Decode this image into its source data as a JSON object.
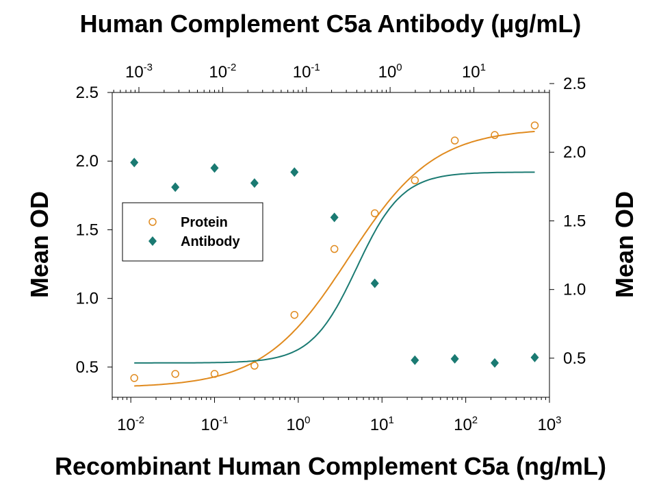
{
  "chart_data": {
    "type": "scatter",
    "title_top": "Human Complement C5a Antibody (μg/mL)",
    "xlabel": "Recombinant Human Complement C5a (ng/mL)",
    "ylabel_left": "Mean OD",
    "ylabel_right": "Mean OD",
    "x_scale": "log",
    "xlim": [
      0.006,
      1000
    ],
    "ylim_left": [
      0.28,
      2.5
    ],
    "ylim_right": [
      0.28,
      2.5
    ],
    "x_ticks": [
      {
        "value": 0.01,
        "base": "10",
        "exp": "-2"
      },
      {
        "value": 0.1,
        "base": "10",
        "exp": "-1"
      },
      {
        "value": 1,
        "base": "10",
        "exp": "0"
      },
      {
        "value": 10,
        "base": "10",
        "exp": "1"
      },
      {
        "value": 100,
        "base": "10",
        "exp": "2"
      },
      {
        "value": 1000,
        "base": "10",
        "exp": "3"
      }
    ],
    "top_x_ticks": [
      {
        "value": 0.001,
        "base": "10",
        "exp": "-3"
      },
      {
        "value": 0.01,
        "base": "10",
        "exp": "-2"
      },
      {
        "value": 0.1,
        "base": "10",
        "exp": "-1"
      },
      {
        "value": 1,
        "base": "10",
        "exp": "0"
      },
      {
        "value": 10,
        "base": "10",
        "exp": "1"
      }
    ],
    "top_xlim": [
      0.00048,
      80
    ],
    "y_ticks_left": [
      "0.5",
      "1.0",
      "1.5",
      "2.0",
      "2.5"
    ],
    "y_ticks_right": [
      "0.5",
      "1.0",
      "1.5",
      "2.0",
      "2.5"
    ],
    "legend_position": "center-left",
    "series": [
      {
        "name": "Protein",
        "marker": "open-circle",
        "color": "#E08A1E",
        "x": [
          0.011,
          0.034,
          0.1,
          0.3,
          0.9,
          2.7,
          8.2,
          24.7,
          74,
          222,
          667
        ],
        "y": [
          0.42,
          0.45,
          0.45,
          0.51,
          0.88,
          1.36,
          1.62,
          1.86,
          2.15,
          2.19,
          2.26
        ],
        "fit": {
          "bottom": 0.35,
          "top": 2.24,
          "ec50": 4.0,
          "hill": 0.85
        }
      },
      {
        "name": "Antibody",
        "marker": "filled-diamond",
        "color": "#1A7A72",
        "x": [
          0.011,
          0.034,
          0.1,
          0.3,
          0.9,
          2.7,
          8.2,
          24.7,
          74,
          222,
          667
        ],
        "y": [
          1.99,
          1.81,
          1.95,
          1.84,
          1.92,
          1.59,
          1.11,
          0.55,
          0.56,
          0.53,
          0.57
        ],
        "fit": {
          "top": 1.92,
          "bottom": 0.53,
          "ec50": 5.0,
          "hill": 1.6
        }
      }
    ]
  }
}
